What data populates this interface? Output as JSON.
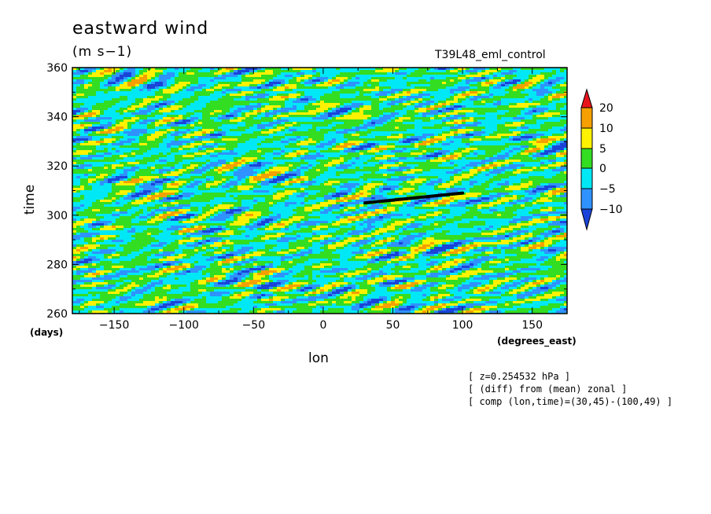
{
  "chart_data": {
    "type": "heatmap",
    "title": "eastward wind",
    "units": "(m s−1)",
    "experiment": "T39L48_eml_control",
    "xlabel": "lon",
    "xunits": "(degrees_east)",
    "ylabel": "time",
    "yunits": "(days)",
    "xlim": [
      -180,
      175
    ],
    "ylim": [
      260,
      360
    ],
    "xticks": [
      "−150",
      "−100",
      "−50",
      "0",
      "50",
      "100",
      "150"
    ],
    "xtick_values": [
      -150,
      -100,
      -50,
      0,
      50,
      100,
      150
    ],
    "yticks": [
      "260",
      "280",
      "300",
      "320",
      "340",
      "360"
    ],
    "ytick_values": [
      260,
      280,
      300,
      320,
      340,
      360
    ],
    "colorbar": {
      "labels": [
        "20",
        "10",
        "5",
        "0",
        "−5",
        "−10"
      ],
      "bins": [
        {
          "range": "> 20",
          "color": "#e8141c"
        },
        {
          "range": "10 to 20",
          "color": "#f5a000"
        },
        {
          "range": "5 to 10",
          "color": "#fff200"
        },
        {
          "range": "0 to 5",
          "color": "#33dd22"
        },
        {
          "range": "-5 to 0",
          "color": "#00e8f5"
        },
        {
          "range": "-10 to -5",
          "color": "#2f92ff"
        },
        {
          "range": "< -10",
          "color": "#1a44d8"
        }
      ]
    },
    "line_segment": {
      "lon": [
        30,
        100
      ],
      "time": [
        305,
        309
      ],
      "color": "#000000"
    }
  },
  "notes": [
    "[ z=0.254532 hPa ]",
    "[ (diff) from (mean) zonal ]",
    "[ comp (lon,time)=(30,45)-(100,49) ]"
  ]
}
